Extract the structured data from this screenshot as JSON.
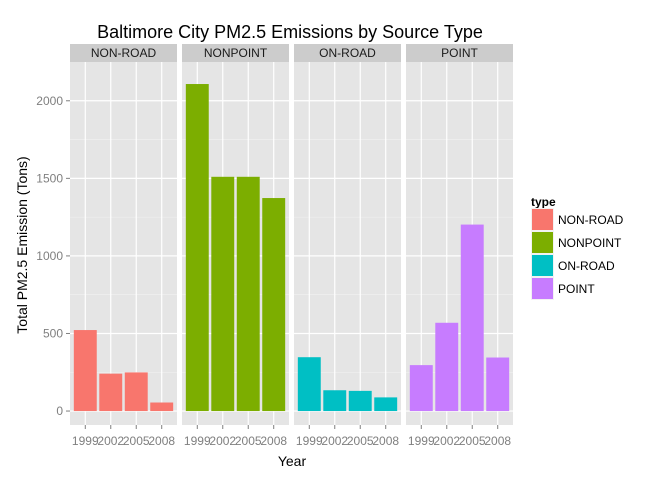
{
  "chart_data": {
    "type": "bar",
    "title": "Baltimore City PM2.5 Emissions by Source Type",
    "xlabel": "Year",
    "ylabel": "Total PM2.5 Emission (Tons)",
    "ylim": [
      -90,
      2250
    ],
    "yticks": [
      0,
      500,
      1000,
      1500,
      2000
    ],
    "grid": true,
    "legend": {
      "title": "type",
      "placement": "right"
    },
    "categories": [
      "1999",
      "2002",
      "2005",
      "2008"
    ],
    "series": [
      {
        "name": "NON-ROAD",
        "color": "#F8766D",
        "values": [
          522,
          241,
          249,
          55
        ]
      },
      {
        "name": "NONPOINT",
        "color": "#7CAE00",
        "values": [
          2108,
          1510,
          1510,
          1373
        ]
      },
      {
        "name": "ON-ROAD",
        "color": "#00BFC4",
        "values": [
          347,
          134,
          130,
          88
        ]
      },
      {
        "name": "POINT",
        "color": "#C77CFF",
        "values": [
          296,
          569,
          1202,
          345
        ]
      }
    ]
  }
}
